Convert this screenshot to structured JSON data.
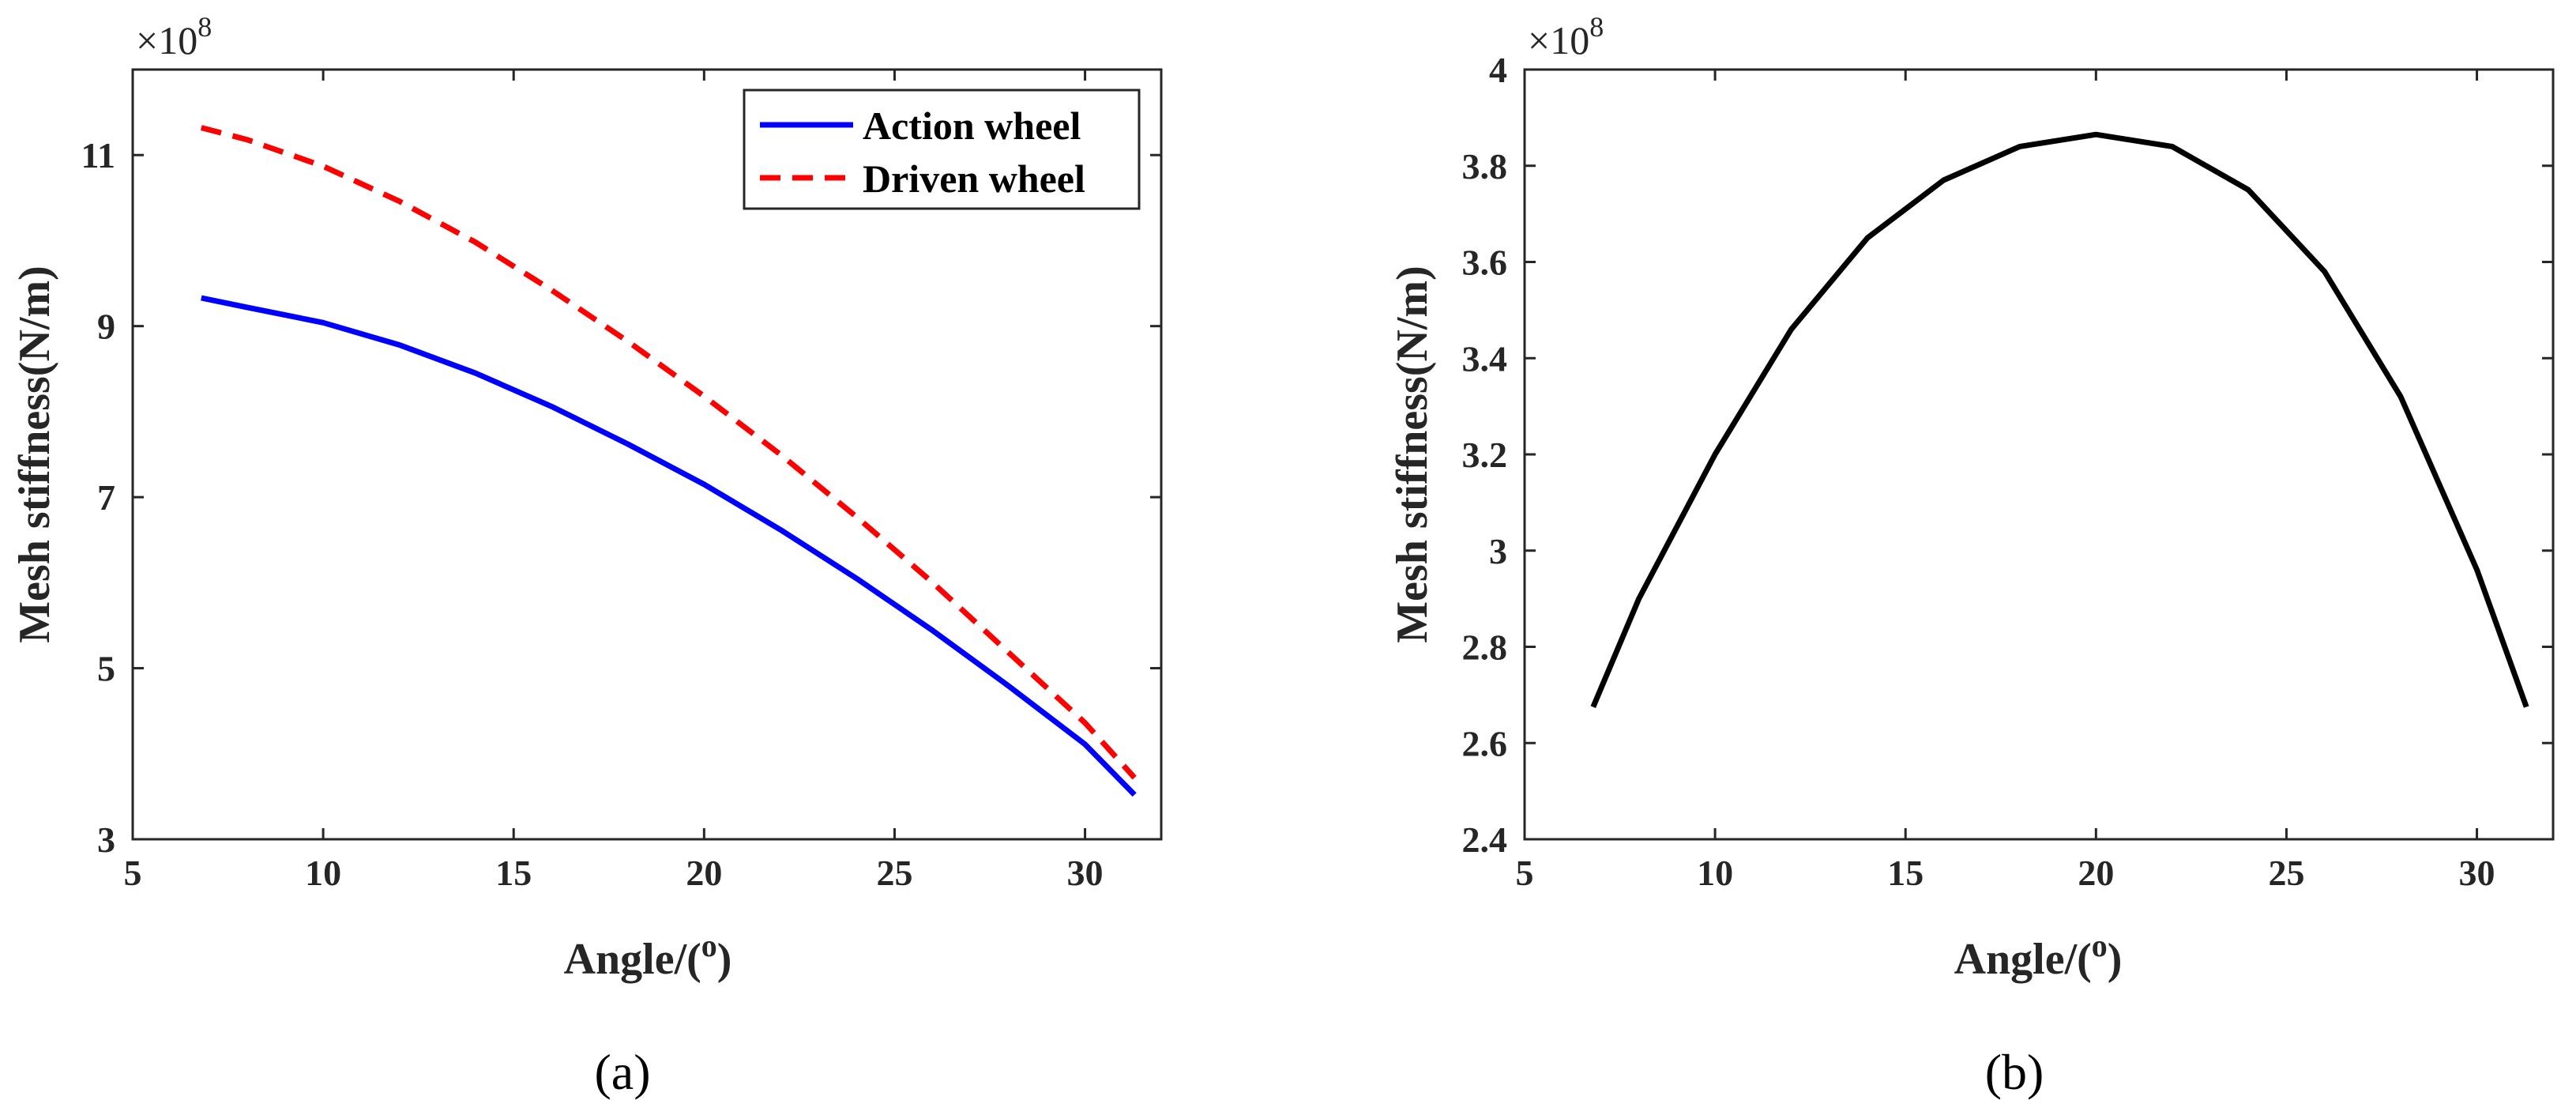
{
  "chart_data": [
    {
      "type": "line",
      "panel_label": "(a)",
      "xlabel": "Angle/(",
      "xlabel_sup": "o",
      "xlabel_end": ")",
      "ylabel": "Mesh stiffness(N/m)",
      "y_multiplier": "×10",
      "y_multiplier_exp": "8",
      "xlim": [
        5,
        32
      ],
      "ylim": [
        3,
        12
      ],
      "xticks": [
        5,
        10,
        15,
        20,
        25,
        30
      ],
      "yticks": [
        3,
        5,
        7,
        9,
        11
      ],
      "legend_position": "top-right",
      "series": [
        {
          "name": "Action wheel",
          "color": "#0000ff",
          "style": "solid",
          "x": [
            6.8,
            8,
            10,
            12,
            14,
            16,
            18,
            20,
            22,
            24,
            26,
            28,
            30,
            31.3
          ],
          "y": [
            9.33,
            9.22,
            9.04,
            8.78,
            8.45,
            8.06,
            7.62,
            7.15,
            6.62,
            6.05,
            5.44,
            4.79,
            4.11,
            3.52
          ]
        },
        {
          "name": "Driven wheel",
          "color": "#ff0000",
          "style": "dashed",
          "x": [
            6.8,
            8,
            10,
            12,
            14,
            16,
            18,
            20,
            22,
            24,
            26,
            28,
            30,
            31.3
          ],
          "y": [
            11.32,
            11.18,
            10.87,
            10.46,
            9.98,
            9.42,
            8.82,
            8.18,
            7.5,
            6.77,
            6.0,
            5.18,
            4.36,
            3.72
          ]
        }
      ]
    },
    {
      "type": "line",
      "panel_label": "(b)",
      "xlabel": "Angle/(",
      "xlabel_sup": "o",
      "xlabel_end": ")",
      "ylabel": "Mesh stiffness(N/m)",
      "y_multiplier": "×10",
      "y_multiplier_exp": "8",
      "xlim": [
        5,
        32
      ],
      "ylim": [
        2.4,
        4
      ],
      "xticks": [
        5,
        10,
        15,
        20,
        25,
        30
      ],
      "yticks": [
        2.4,
        2.6,
        2.8,
        3,
        3.2,
        3.4,
        3.6,
        3.8,
        4
      ],
      "series": [
        {
          "name": "Mesh stiffness",
          "color": "#000000",
          "style": "solid",
          "x": [
            6.8,
            8,
            10,
            12,
            14,
            16,
            18,
            20,
            22,
            24,
            26,
            28,
            30,
            31.3
          ],
          "y": [
            2.675,
            2.9,
            3.2,
            3.46,
            3.65,
            3.77,
            3.84,
            3.865,
            3.84,
            3.75,
            3.58,
            3.32,
            2.96,
            2.675
          ]
        }
      ]
    }
  ]
}
